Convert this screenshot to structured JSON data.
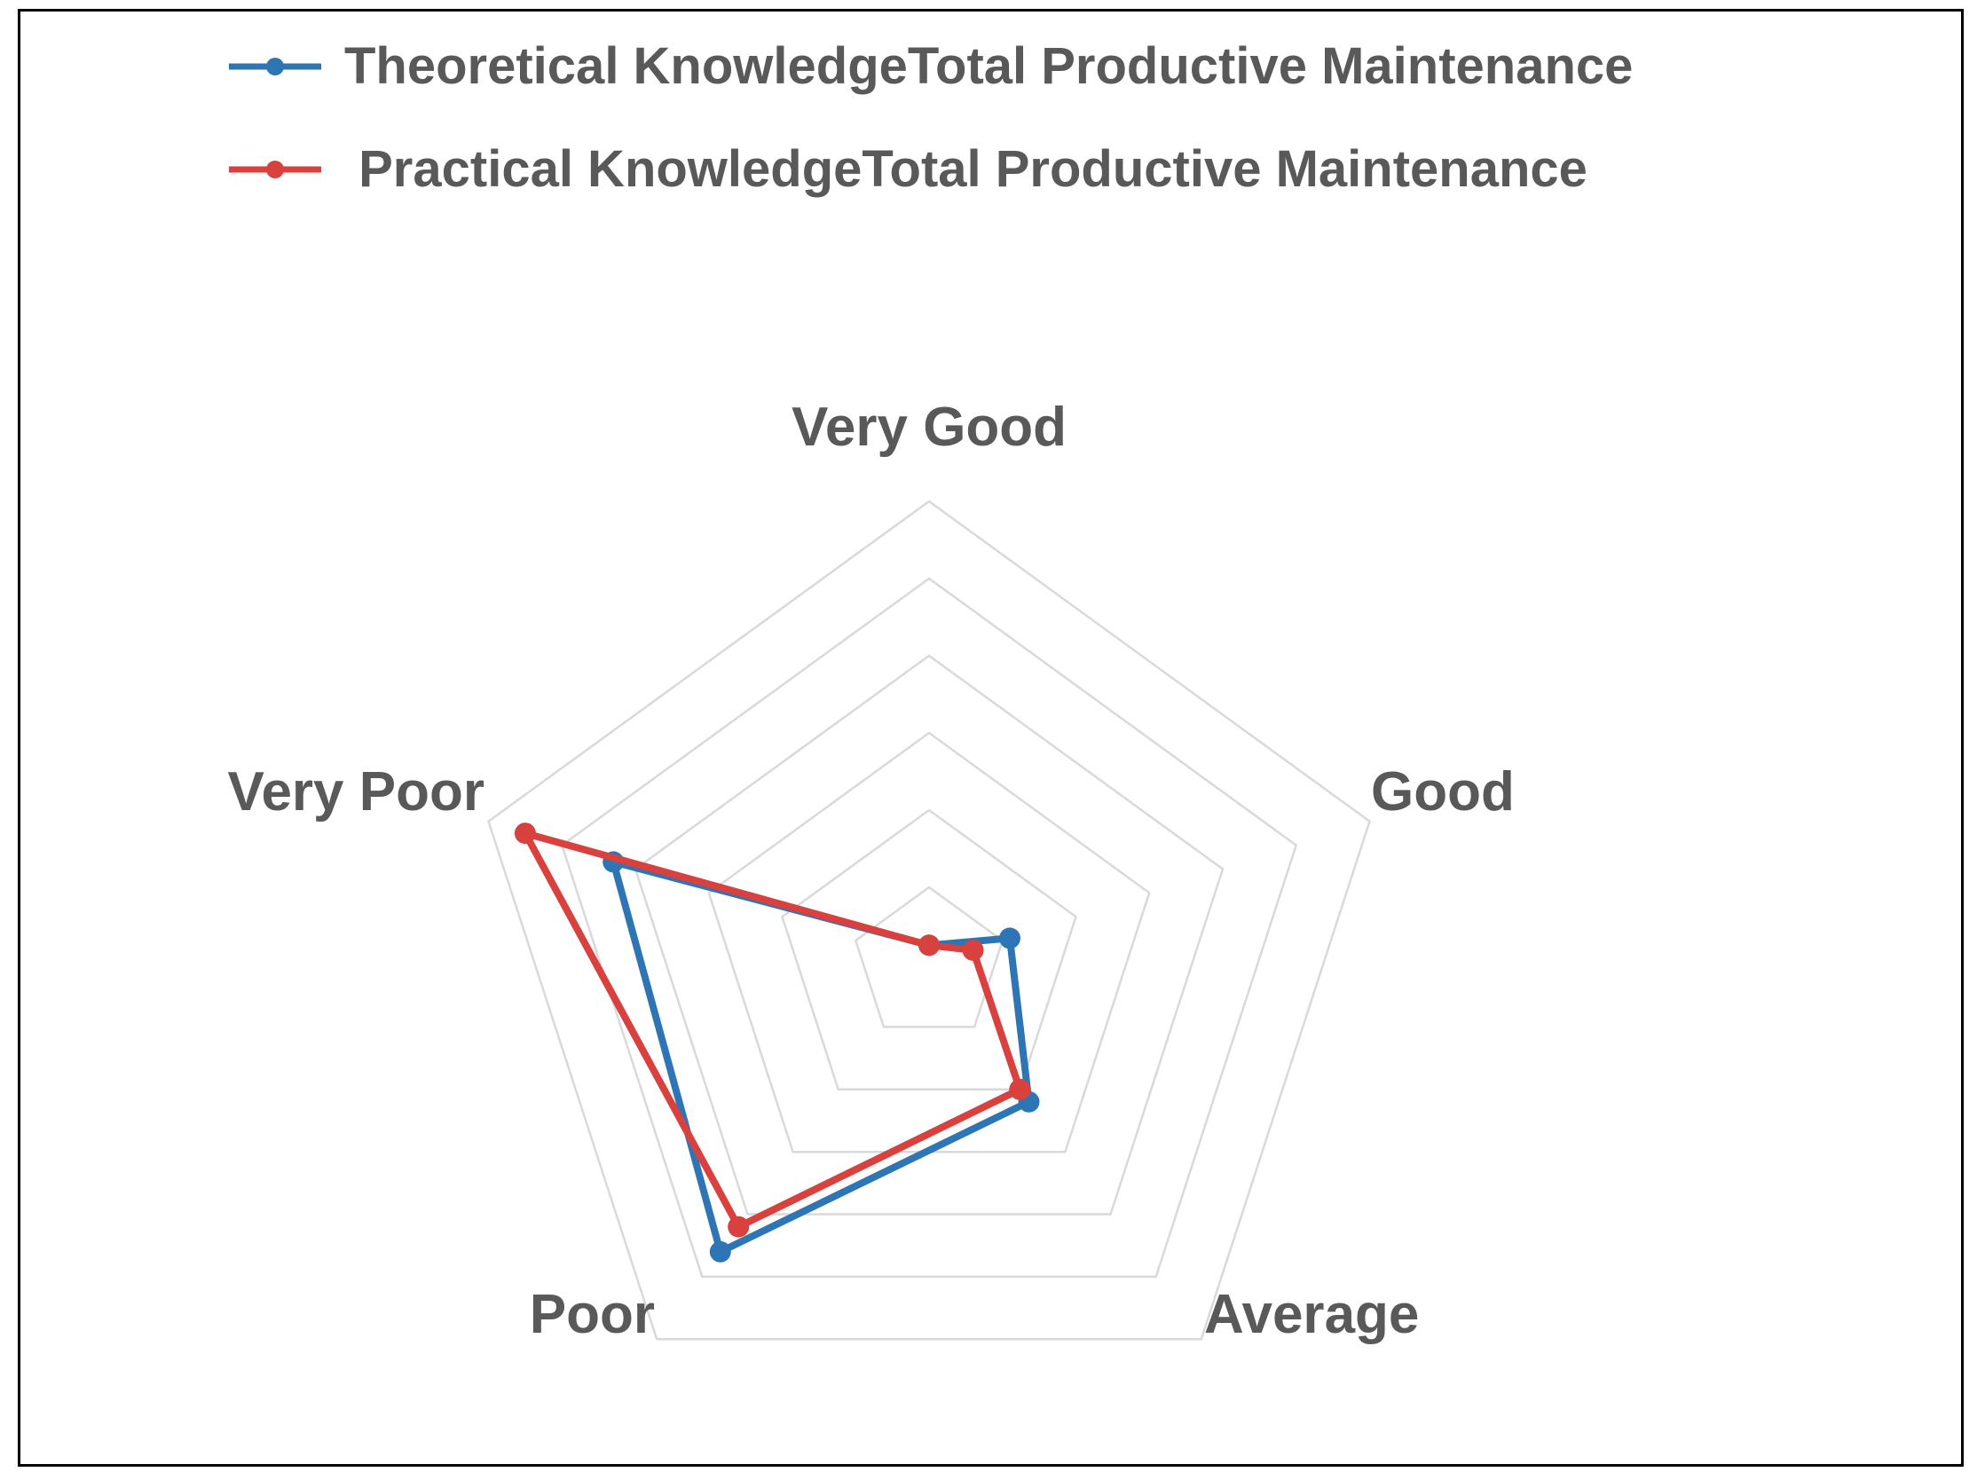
{
  "chart_data": {
    "type": "radar",
    "title": "",
    "categories": [
      "Very Good",
      "Good",
      "Average",
      "Poor",
      "Very Poor"
    ],
    "rlim": [
      0,
      6
    ],
    "rings": 6,
    "grid": true,
    "legend_position": "top",
    "series": [
      {
        "name": "Theoretical KnowledgeTotal Productive Maintenance",
        "color": "#2E75B6",
        "values": [
          0.25,
          1.1,
          2.2,
          4.6,
          4.3
        ]
      },
      {
        "name": " Practical KnowledgeTotal Productive Maintenance",
        "color": "#D9413E",
        "values": [
          0.25,
          0.6,
          2.0,
          4.2,
          5.5
        ]
      }
    ]
  },
  "colors": {
    "grid": "#D9D9D9",
    "text": "#595959",
    "border": "#000000"
  }
}
